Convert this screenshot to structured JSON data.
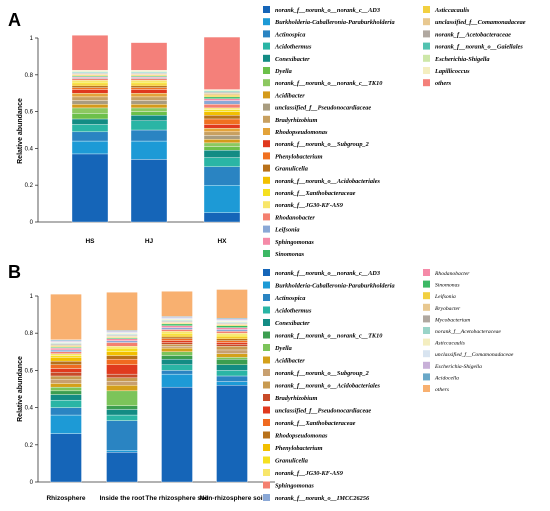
{
  "chart_data": [
    {
      "panel": "A",
      "type": "bar",
      "stacked": true,
      "ylabel": "Relative abundance",
      "ylim": [
        0,
        1
      ],
      "yticks": [
        "0",
        "0.2",
        "0.4",
        "0.6",
        "0.8",
        "1"
      ],
      "categories": [
        "HS",
        "HJ",
        "HX"
      ],
      "legend": [
        {
          "name": "norank_f__norank_o__norank_c__AD3",
          "color": "#1565b8"
        },
        {
          "name": "Burkholderia-Caballeronia-Paraburkholderia",
          "color": "#1d9ad6"
        },
        {
          "name": "Actinospica",
          "color": "#2a84c2"
        },
        {
          "name": "Acidothermus",
          "color": "#2ab5a5"
        },
        {
          "name": "Conexibacter",
          "color": "#138c84"
        },
        {
          "name": "Dyella",
          "color": "#6cc04a"
        },
        {
          "name": "norank_f__norank_o__norank_c__TK10",
          "color": "#8cc860"
        },
        {
          "name": "Acidibacter",
          "color": "#d49a1a"
        },
        {
          "name": "unclassified_f__Pseudonocardiaceae",
          "color": "#a89c80"
        },
        {
          "name": "Bradyrhizobium",
          "color": "#c8a060"
        },
        {
          "name": "Rhodopseudomonas",
          "color": "#e3a33a"
        },
        {
          "name": "norank_f__norank_o__Subgroup_2",
          "color": "#e0381e"
        },
        {
          "name": "Phenylobacterium",
          "color": "#f07020"
        },
        {
          "name": "Granulicella",
          "color": "#b8711a"
        },
        {
          "name": "norank_f__norank_o__Acidobacteriales",
          "color": "#f2c000"
        },
        {
          "name": "norank_f__Xanthobacteraceae",
          "color": "#f5e020"
        },
        {
          "name": "norank_f__JG30-KF-AS9",
          "color": "#f8e66a"
        },
        {
          "name": "Rhodanobacter",
          "color": "#f48070"
        },
        {
          "name": "Leifsonia",
          "color": "#8aa8d6"
        },
        {
          "name": "Sphingomonas",
          "color": "#f58aa8"
        },
        {
          "name": "Sinomonas",
          "color": "#3cb864"
        },
        {
          "name": "Asticcacaulis",
          "color": "#f2d040"
        },
        {
          "name": "unclassified_f__Comamonadaceae",
          "color": "#e8c890"
        },
        {
          "name": "norank_f__Acetobacteraceae",
          "color": "#b0a8a0"
        },
        {
          "name": "norank_f__norank_o__Gaiellales",
          "color": "#52c2b0"
        },
        {
          "name": "Escherichia-Shigella",
          "color": "#cde7a8"
        },
        {
          "name": "Lapillicoccus",
          "color": "#f4eec0"
        },
        {
          "name": "others",
          "color": "#f4807a"
        }
      ],
      "series": [
        {
          "name": "norank_f__norank_o__norank_c__AD3",
          "values": [
            0.37,
            0.34,
            0.05
          ]
        },
        {
          "name": "Burkholderia-Caballeronia-Paraburkholderia",
          "values": [
            0.07,
            0.1,
            0.15
          ]
        },
        {
          "name": "Actinospica",
          "values": [
            0.05,
            0.06,
            0.1
          ]
        },
        {
          "name": "Acidothermus",
          "values": [
            0.04,
            0.05,
            0.05
          ]
        },
        {
          "name": "Conexibacter",
          "values": [
            0.03,
            0.03,
            0.04
          ]
        },
        {
          "name": "Dyella",
          "values": [
            0.03,
            0.02,
            0.02
          ]
        },
        {
          "name": "norank_f__norank_o__norank_c__TK10",
          "values": [
            0.03,
            0.02,
            0.02
          ]
        },
        {
          "name": "Acidibacter",
          "values": [
            0.02,
            0.02,
            0.02
          ]
        },
        {
          "name": "unclassified_f__Pseudonocardiaceae",
          "values": [
            0.02,
            0.02,
            0.02
          ]
        },
        {
          "name": "Bradyrhizobium",
          "values": [
            0.02,
            0.02,
            0.02
          ]
        },
        {
          "name": "Rhodopseudomonas",
          "values": [
            0.02,
            0.02,
            0.02
          ]
        },
        {
          "name": "norank_f__norank_o__Subgroup_2",
          "values": [
            0.02,
            0.02,
            0.02
          ]
        },
        {
          "name": "Phenylobacterium",
          "values": [
            0.01,
            0.01,
            0.03
          ]
        },
        {
          "name": "Granulicella",
          "values": [
            0.01,
            0.01,
            0.02
          ]
        },
        {
          "name": "norank_f__norank_o__Acidobacteriales",
          "values": [
            0.01,
            0.01,
            0.02
          ]
        },
        {
          "name": "norank_f__Xanthobacteraceae",
          "values": [
            0.01,
            0.01,
            0.01
          ]
        },
        {
          "name": "norank_f__JG30-KF-AS9",
          "values": [
            0.01,
            0.01,
            0.01
          ]
        },
        {
          "name": "Rhodanobacter",
          "values": [
            0.01,
            0.01,
            0.02
          ]
        },
        {
          "name": "Leifsonia",
          "values": [
            0.005,
            0.005,
            0.02
          ]
        },
        {
          "name": "Sphingomonas",
          "values": [
            0.005,
            0.005,
            0.01
          ]
        },
        {
          "name": "Sinomonas",
          "values": [
            0.005,
            0.005,
            0.01
          ]
        },
        {
          "name": "Asticcacaulis",
          "values": [
            0.005,
            0.005,
            0.01
          ]
        },
        {
          "name": "unclassified_f__Comamonadaceae",
          "values": [
            0.005,
            0.005,
            0.01
          ]
        },
        {
          "name": "norank_f__Acetobacteraceae",
          "values": [
            0.005,
            0.005,
            0.005
          ]
        },
        {
          "name": "norank_f__norank_o__Gaiellales",
          "values": [
            0.005,
            0.005,
            0.005
          ]
        },
        {
          "name": "Escherichia-Shigella",
          "values": [
            0.005,
            0.005,
            0.005
          ]
        },
        {
          "name": "Lapillicoccus",
          "values": [
            0.005,
            0.005,
            0.005
          ]
        },
        {
          "name": "others",
          "values": [
            0.19,
            0.15,
            0.285
          ]
        }
      ]
    },
    {
      "panel": "B",
      "type": "bar",
      "stacked": true,
      "ylabel": "Relative abundance",
      "ylim": [
        0,
        1
      ],
      "yticks": [
        "0",
        "0.2",
        "0.4",
        "0.6",
        "0.8",
        "1"
      ],
      "categories": [
        "Rhizosphere",
        "Inside the root",
        "The rhizosphere soil",
        "Non-rhizosphere soil"
      ],
      "legend": [
        {
          "name": "norank_f__norank_o__norank_c__AD3",
          "color": "#1565b8"
        },
        {
          "name": "Burkholderia-Caballeronia-Paraburkholderia",
          "color": "#1d9ad6"
        },
        {
          "name": "Actinospica",
          "color": "#2a84c2"
        },
        {
          "name": "Acidothermus",
          "color": "#2ab5a5"
        },
        {
          "name": "Conexibacter",
          "color": "#138c84"
        },
        {
          "name": "norank_f__norank_o__norank_c__TK10",
          "color": "#3c9e50"
        },
        {
          "name": "Dyella",
          "color": "#7cc45a"
        },
        {
          "name": "Acidibacter",
          "color": "#d4a01a"
        },
        {
          "name": "norank_f__norank_o__Subgroup_2",
          "color": "#c8a070"
        },
        {
          "name": "norank_f__norank_o__Acidobacteriales",
          "color": "#c89a50"
        },
        {
          "name": "Bradyrhizobium",
          "color": "#c84a28"
        },
        {
          "name": "unclassified_f__Pseudonocardiaceae",
          "color": "#e03a1e"
        },
        {
          "name": "norank_f__Xanthobacteraceae",
          "color": "#f06a20"
        },
        {
          "name": "Rhodopseudomonas",
          "color": "#b8711a"
        },
        {
          "name": "Phenylobacterium",
          "color": "#f2c000"
        },
        {
          "name": "Granulicella",
          "color": "#f5e020"
        },
        {
          "name": "norank_f__JG30-KF-AS9",
          "color": "#f8e66a"
        },
        {
          "name": "Sphingomonas",
          "color": "#f48070"
        },
        {
          "name": "norank_f__norank_o__IMCC26256",
          "color": "#8aa8d6"
        },
        {
          "name": "Rhodanobacter",
          "color": "#f58aa8"
        },
        {
          "name": "Sinomonas",
          "color": "#3cb864"
        },
        {
          "name": "Leifsonia",
          "color": "#f2d040"
        },
        {
          "name": "Bryobacter",
          "color": "#e8c890"
        },
        {
          "name": "Mycobacterium",
          "color": "#b0a8a0"
        },
        {
          "name": "norank_f__Acetobacteraceae",
          "color": "#9ad4c8"
        },
        {
          "name": "Asticcacaulis",
          "color": "#f4eec0"
        },
        {
          "name": "unclassified_f__Comamonadaceae",
          "color": "#d8e4f0"
        },
        {
          "name": "Escherichia-Shigella",
          "color": "#c8b0d8"
        },
        {
          "name": "Acidocella",
          "color": "#6aa8c8"
        },
        {
          "name": "others",
          "color": "#f8b070"
        }
      ],
      "series": [
        {
          "name": "norank_f__norank_o__norank_c__AD3",
          "values": [
            0.26,
            0.16,
            0.51,
            0.52
          ]
        },
        {
          "name": "Burkholderia-Caballeronia-Paraburkholderia",
          "values": [
            0.1,
            0.01,
            0.07,
            0.02
          ]
        },
        {
          "name": "Actinospica",
          "values": [
            0.04,
            0.16,
            0.02,
            0.03
          ]
        },
        {
          "name": "Acidothermus",
          "values": [
            0.04,
            0.03,
            0.03,
            0.03
          ]
        },
        {
          "name": "Conexibacter",
          "values": [
            0.03,
            0.03,
            0.03,
            0.03
          ]
        },
        {
          "name": "norank_f__norank_o__norank_c__TK10",
          "values": [
            0.02,
            0.02,
            0.02,
            0.03
          ]
        },
        {
          "name": "Dyella",
          "values": [
            0.02,
            0.08,
            0.02,
            0.01
          ]
        },
        {
          "name": "Acidibacter",
          "values": [
            0.02,
            0.03,
            0.02,
            0.02
          ]
        },
        {
          "name": "norank_f__norank_o__Subgroup_2",
          "values": [
            0.02,
            0.02,
            0.01,
            0.02
          ]
        },
        {
          "name": "norank_f__norank_o__Acidobacteriales",
          "values": [
            0.02,
            0.02,
            0.01,
            0.02
          ]
        },
        {
          "name": "Bradyrhizobium",
          "values": [
            0.02,
            0.02,
            0.01,
            0.01
          ]
        },
        {
          "name": "unclassified_f__Pseudonocardiaceae",
          "values": [
            0.02,
            0.05,
            0.01,
            0.01
          ]
        },
        {
          "name": "norank_f__Xanthobacteraceae",
          "values": [
            0.02,
            0.03,
            0.01,
            0.01
          ]
        },
        {
          "name": "Rhodopseudomonas",
          "values": [
            0.02,
            0.02,
            0.01,
            0.01
          ]
        },
        {
          "name": "Phenylobacterium",
          "values": [
            0.02,
            0.02,
            0.01,
            0.01
          ]
        },
        {
          "name": "Granulicella",
          "values": [
            0.01,
            0.02,
            0.01,
            0.01
          ]
        },
        {
          "name": "norank_f__JG30-KF-AS9",
          "values": [
            0.01,
            0.01,
            0.01,
            0.01
          ]
        },
        {
          "name": "Sphingomonas",
          "values": [
            0.01,
            0.02,
            0.01,
            0.01
          ]
        },
        {
          "name": "norank_f__norank_o__IMCC26256",
          "values": [
            0.01,
            0.01,
            0.01,
            0.01
          ]
        },
        {
          "name": "Rhodanobacter",
          "values": [
            0.01,
            0.01,
            0.01,
            0.01
          ]
        },
        {
          "name": "Sinomonas",
          "values": [
            0.005,
            0.005,
            0.01,
            0.01
          ]
        },
        {
          "name": "Leifsonia",
          "values": [
            0.005,
            0.005,
            0.005,
            0.005
          ]
        },
        {
          "name": "Bryobacter",
          "values": [
            0.005,
            0.005,
            0.005,
            0.005
          ]
        },
        {
          "name": "Mycobacterium",
          "values": [
            0.005,
            0.005,
            0.005,
            0.005
          ]
        },
        {
          "name": "norank_f__Acetobacteraceae",
          "values": [
            0.005,
            0.005,
            0.005,
            0.005
          ]
        },
        {
          "name": "Asticcacaulis",
          "values": [
            0.005,
            0.005,
            0.005,
            0.005
          ]
        },
        {
          "name": "unclassified_f__Comamonadaceae",
          "values": [
            0.005,
            0.005,
            0.005,
            0.005
          ]
        },
        {
          "name": "Escherichia-Shigella",
          "values": [
            0.005,
            0.005,
            0.005,
            0.005
          ]
        },
        {
          "name": "Acidocella",
          "values": [
            0.005,
            0.005,
            0.005,
            0.005
          ]
        },
        {
          "name": "others",
          "values": [
            0.245,
            0.205,
            0.135,
            0.155
          ]
        }
      ]
    }
  ]
}
